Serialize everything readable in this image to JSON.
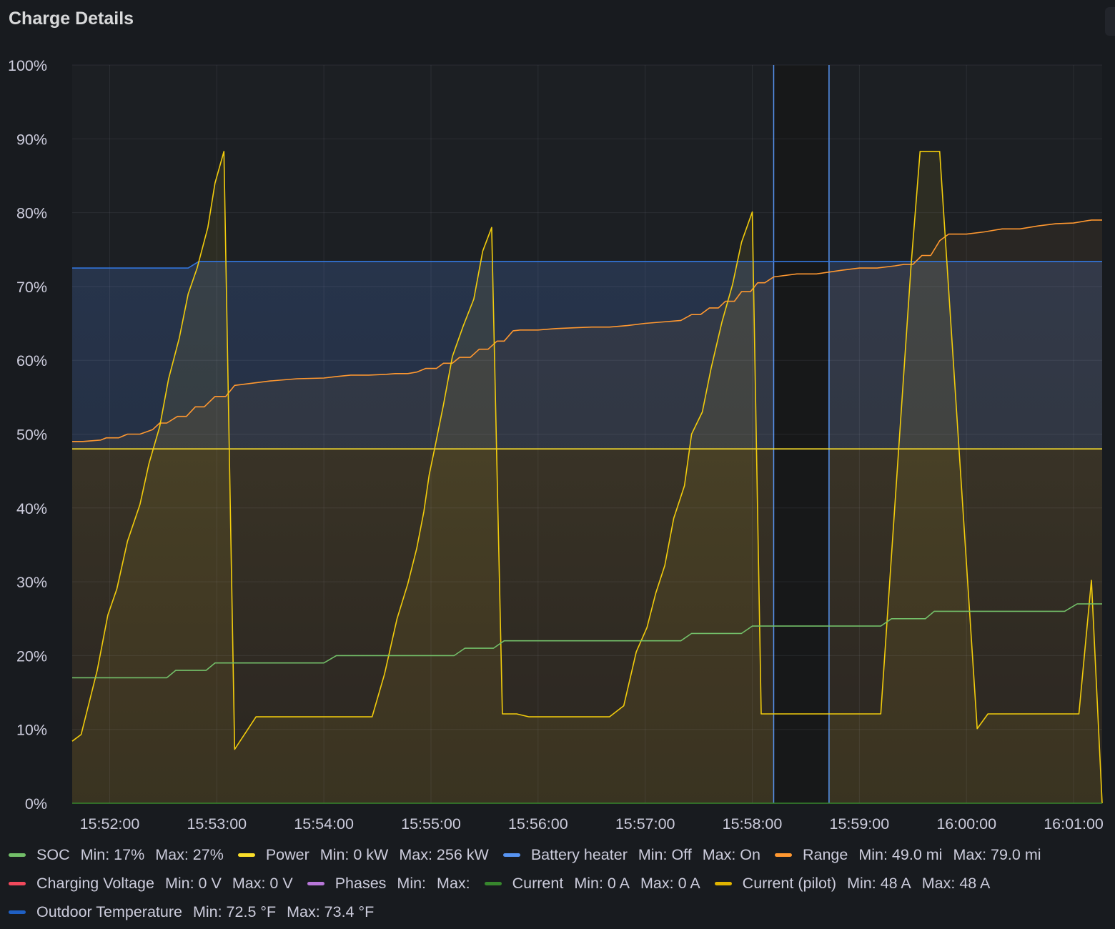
{
  "panel": {
    "title": "Charge Details"
  },
  "chart_data": {
    "type": "line",
    "title": "Charge Details",
    "x_ticks": [
      "15:52:00",
      "15:53:00",
      "15:54:00",
      "15:55:00",
      "15:56:00",
      "15:57:00",
      "15:58:00",
      "15:59:00",
      "16:00:00",
      "16:01:00"
    ],
    "y_ticks": [
      "0%",
      "10%",
      "20%",
      "30%",
      "40%",
      "50%",
      "60%",
      "70%",
      "80%",
      "90%",
      "100%"
    ],
    "xlim": [
      "15:51:39",
      "16:01:16"
    ],
    "ylim": [
      0,
      100
    ],
    "grid": true,
    "legend_position": "bottom",
    "annotations": [
      {
        "label": "",
        "from": "15:58:12",
        "to": "15:58:43"
      }
    ],
    "series": [
      {
        "name": "Outdoor Temperature",
        "color": "#3274d9",
        "fill": true,
        "points": [
          [
            "15:51:39",
            72.5
          ],
          [
            "15:52:44",
            72.5
          ],
          [
            "15:52:50",
            73.4
          ],
          [
            "16:01:16",
            73.4
          ]
        ]
      },
      {
        "name": "Current (pilot)",
        "color": "#fade2a",
        "fill": true,
        "points": [
          [
            "15:51:39",
            48
          ],
          [
            "16:01:16",
            48
          ]
        ]
      },
      {
        "name": "Range",
        "color": "#ff9830",
        "fill": true,
        "points": [
          [
            "15:51:39",
            49.0
          ],
          [
            "15:51:45",
            49.0
          ],
          [
            "15:51:55",
            49.2
          ],
          [
            "15:51:58",
            49.5
          ],
          [
            "15:52:05",
            49.5
          ],
          [
            "15:52:10",
            50
          ],
          [
            "15:52:17",
            50
          ],
          [
            "15:52:24",
            50.6
          ],
          [
            "15:52:28",
            51.5
          ],
          [
            "15:52:32",
            51.5
          ],
          [
            "15:52:38",
            52.4
          ],
          [
            "15:52:43",
            52.4
          ],
          [
            "15:52:48",
            53.7
          ],
          [
            "15:52:53",
            53.7
          ],
          [
            "15:52:59",
            55.1
          ],
          [
            "15:53:05",
            55.1
          ],
          [
            "15:53:10",
            56.6
          ],
          [
            "15:53:20",
            56.9
          ],
          [
            "15:53:30",
            57.2
          ],
          [
            "15:53:45",
            57.5
          ],
          [
            "15:54:00",
            57.6
          ],
          [
            "15:54:07",
            57.8
          ],
          [
            "15:54:15",
            58.0
          ],
          [
            "15:54:25",
            58.0
          ],
          [
            "15:54:35",
            58.1
          ],
          [
            "15:54:40",
            58.2
          ],
          [
            "15:54:47",
            58.2
          ],
          [
            "15:54:52",
            58.4
          ],
          [
            "15:54:57",
            58.9
          ],
          [
            "15:55:03",
            58.9
          ],
          [
            "15:55:07",
            59.6
          ],
          [
            "15:55:12",
            59.6
          ],
          [
            "15:55:16",
            60.4
          ],
          [
            "15:55:22",
            60.4
          ],
          [
            "15:55:27",
            61.5
          ],
          [
            "15:55:32",
            61.5
          ],
          [
            "15:55:37",
            62.6
          ],
          [
            "15:55:41",
            62.6
          ],
          [
            "15:55:46",
            64.0
          ],
          [
            "15:55:50",
            64.1
          ],
          [
            "15:56:00",
            64.1
          ],
          [
            "15:56:10",
            64.3
          ],
          [
            "15:56:20",
            64.4
          ],
          [
            "15:56:30",
            64.5
          ],
          [
            "15:56:40",
            64.5
          ],
          [
            "15:56:50",
            64.7
          ],
          [
            "15:57:00",
            65.0
          ],
          [
            "15:57:10",
            65.2
          ],
          [
            "15:57:20",
            65.4
          ],
          [
            "15:57:26",
            66.2
          ],
          [
            "15:57:31",
            66.2
          ],
          [
            "15:57:36",
            67.1
          ],
          [
            "15:57:41",
            67.1
          ],
          [
            "15:57:45",
            68.0
          ],
          [
            "15:57:50",
            68.0
          ],
          [
            "15:57:54",
            69.3
          ],
          [
            "15:57:59",
            69.3
          ],
          [
            "15:58:03",
            70.5
          ],
          [
            "15:58:07",
            70.5
          ],
          [
            "15:58:12",
            71.3
          ],
          [
            "15:58:25",
            71.7
          ],
          [
            "15:58:36",
            71.7
          ],
          [
            "15:58:50",
            72.2
          ],
          [
            "15:59:00",
            72.5
          ],
          [
            "15:59:10",
            72.5
          ],
          [
            "15:59:20",
            72.8
          ],
          [
            "15:59:25",
            73.0
          ],
          [
            "15:59:30",
            73.0
          ],
          [
            "15:59:35",
            74.2
          ],
          [
            "15:59:40",
            74.2
          ],
          [
            "15:59:45",
            76.2
          ],
          [
            "15:59:50",
            77.1
          ],
          [
            "16:00:00",
            77.1
          ],
          [
            "16:00:10",
            77.4
          ],
          [
            "16:00:20",
            77.8
          ],
          [
            "16:00:30",
            77.8
          ],
          [
            "16:00:40",
            78.2
          ],
          [
            "16:00:50",
            78.5
          ],
          [
            "16:01:00",
            78.6
          ],
          [
            "16:01:10",
            79.0
          ],
          [
            "16:01:16",
            79.0
          ]
        ]
      },
      {
        "name": "Power",
        "color": "#f2cc0c",
        "fill": true,
        "points": [
          [
            "15:51:39",
            8.4
          ],
          [
            "15:51:44",
            9.3
          ],
          [
            "15:51:53",
            18
          ],
          [
            "15:51:59",
            25.5
          ],
          [
            "15:52:04",
            29
          ],
          [
            "15:52:10",
            35.5
          ],
          [
            "15:52:17",
            40.5
          ],
          [
            "15:52:22",
            46
          ],
          [
            "15:52:28",
            51
          ],
          [
            "15:52:33",
            57.5
          ],
          [
            "15:52:39",
            63
          ],
          [
            "15:52:44",
            69
          ],
          [
            "15:52:49",
            72.5
          ],
          [
            "15:52:55",
            78
          ],
          [
            "15:52:59",
            84
          ],
          [
            "15:53:04",
            88.3
          ],
          [
            "15:53:10",
            7.3
          ],
          [
            "15:53:22",
            11.7
          ],
          [
            "15:54:22",
            11.7
          ],
          [
            "15:54:27",
            11.7
          ],
          [
            "15:54:34",
            17.5
          ],
          [
            "15:54:41",
            25
          ],
          [
            "15:54:47",
            29.7
          ],
          [
            "15:54:52",
            34.5
          ],
          [
            "15:54:56",
            39.5
          ],
          [
            "15:54:59",
            44.5
          ],
          [
            "15:55:02",
            48
          ],
          [
            "15:55:07",
            54
          ],
          [
            "15:55:12",
            60.5
          ],
          [
            "15:55:18",
            64.6
          ],
          [
            "15:55:24",
            68.3
          ],
          [
            "15:55:29",
            74.8
          ],
          [
            "15:55:34",
            78
          ],
          [
            "15:55:40",
            12.1
          ],
          [
            "15:55:48",
            12.1
          ],
          [
            "15:55:55",
            11.7
          ],
          [
            "15:56:34",
            11.7
          ],
          [
            "15:56:40",
            11.7
          ],
          [
            "15:56:48",
            13.2
          ],
          [
            "15:56:55",
            20.5
          ],
          [
            "15:57:01",
            23.8
          ],
          [
            "15:57:06",
            28.5
          ],
          [
            "15:57:11",
            32.2
          ],
          [
            "15:57:16",
            38.6
          ],
          [
            "15:57:22",
            43
          ],
          [
            "15:57:26",
            50
          ],
          [
            "15:57:32",
            53
          ],
          [
            "15:57:37",
            59
          ],
          [
            "15:57:43",
            65.2
          ],
          [
            "15:57:49",
            70.3
          ],
          [
            "15:57:54",
            76
          ],
          [
            "15:58:00",
            80.1
          ],
          [
            "15:58:05",
            12.1
          ],
          [
            "15:59:12",
            12.1
          ],
          [
            "15:59:29",
            73
          ],
          [
            "15:59:34",
            88.3
          ],
          [
            "15:59:45",
            88.3
          ],
          [
            "16:00:06",
            10.1
          ],
          [
            "16:00:12",
            12.1
          ],
          [
            "16:01:03",
            12.1
          ],
          [
            "16:01:10",
            30.2
          ],
          [
            "16:01:16",
            0
          ]
        ]
      },
      {
        "name": "SOC",
        "color": "#73bf69",
        "fill": false,
        "points": [
          [
            "15:51:39",
            17
          ],
          [
            "15:52:32",
            17
          ],
          [
            "15:52:37",
            18
          ],
          [
            "15:52:54",
            18
          ],
          [
            "15:52:59",
            19
          ],
          [
            "15:54:00",
            19
          ],
          [
            "15:54:07",
            20
          ],
          [
            "15:55:13",
            20
          ],
          [
            "15:55:19",
            21
          ],
          [
            "15:55:35",
            21
          ],
          [
            "15:55:41",
            22
          ],
          [
            "15:57:20",
            22
          ],
          [
            "15:57:26",
            23
          ],
          [
            "15:57:54",
            23
          ],
          [
            "15:58:00",
            24
          ],
          [
            "15:59:12",
            24
          ],
          [
            "15:59:18",
            25
          ],
          [
            "15:59:37",
            25
          ],
          [
            "15:59:42",
            26
          ],
          [
            "16:00:55",
            26
          ],
          [
            "16:01:02",
            27
          ],
          [
            "16:01:16",
            27
          ]
        ]
      },
      {
        "name": "Current",
        "color": "#37872d",
        "fill": false,
        "points": [
          [
            "15:51:39",
            0
          ],
          [
            "16:01:16",
            0
          ]
        ]
      }
    ],
    "legend": [
      {
        "row": 0,
        "name": "SOC",
        "color": "#73bf69",
        "min": "Min: 17%",
        "max": "Max: 27%"
      },
      {
        "row": 0,
        "name": "Power",
        "color": "#fade2a",
        "min": "Min: 0 kW",
        "max": "Max: 256 kW"
      },
      {
        "row": 0,
        "name": "Battery heater",
        "color": "#5794f2",
        "min": "Min: Off",
        "max": "Max: On"
      },
      {
        "row": 0,
        "name": "Range",
        "color": "#ff9830",
        "min": "Min: 49.0 mi",
        "max": "Max: 79.0 mi"
      },
      {
        "row": 1,
        "name": "Charging Voltage",
        "color": "#f2495c",
        "min": "Min: 0 V",
        "max": "Max: 0 V"
      },
      {
        "row": 1,
        "name": "Phases",
        "color": "#b877d9",
        "min": "Min:",
        "max": "Max:"
      },
      {
        "row": 1,
        "name": "Current",
        "color": "#37872d",
        "min": "Min: 0 A",
        "max": "Max: 0 A"
      },
      {
        "row": 1,
        "name": "Current (pilot)",
        "color": "#e0b400",
        "min": "Min: 48 A",
        "max": "Max: 48 A"
      },
      {
        "row": 2,
        "name": "Outdoor Temperature",
        "color": "#1f60c4",
        "min": "Min: 72.5 °F",
        "max": "Max: 73.4 °F"
      }
    ]
  }
}
